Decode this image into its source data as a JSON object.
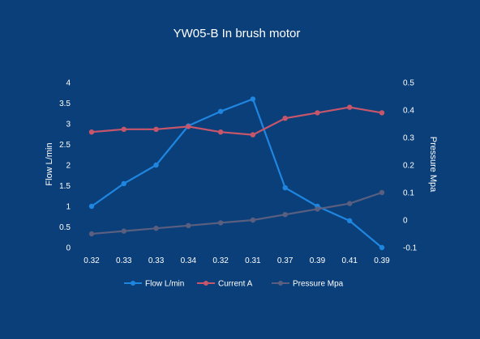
{
  "chart_data": {
    "type": "line",
    "title": "YW05-B In brush motor",
    "categories": [
      "0.32",
      "0.33",
      "0.33",
      "0.34",
      "0.32",
      "0.31",
      "0.37",
      "0.39",
      "0.41",
      "0.39"
    ],
    "y_left": {
      "label": "Flow  L/min",
      "ylim": [
        0,
        4
      ],
      "ticks": [
        "0",
        "0.5",
        "1",
        "1.5",
        "2",
        "2.5",
        "3",
        "3.5",
        "4"
      ]
    },
    "y_right": {
      "label": "Pressure Mpa",
      "ylim": [
        -0.1,
        0.5
      ],
      "ticks": [
        "-0.1",
        "0",
        "0.1",
        "0.2",
        "0.3",
        "0.4",
        "0.5"
      ]
    },
    "series": [
      {
        "name": "Flow L/min",
        "axis": "left",
        "color": "#1f86e0",
        "values": [
          1.0,
          1.55,
          2.0,
          2.95,
          3.3,
          3.6,
          1.45,
          1.0,
          0.65,
          0.0
        ]
      },
      {
        "name": "Current A",
        "axis": "right",
        "color": "#c8566b",
        "values": [
          0.32,
          0.33,
          0.33,
          0.34,
          0.32,
          0.31,
          0.37,
          0.39,
          0.41,
          0.39
        ]
      },
      {
        "name": "Pressure Mpa",
        "axis": "right",
        "color": "#5a5f7f",
        "values": [
          -0.05,
          -0.04,
          -0.03,
          -0.02,
          -0.01,
          0.0,
          0.02,
          0.04,
          0.06,
          0.1
        ]
      }
    ],
    "legend_position": "bottom",
    "grid": false
  }
}
